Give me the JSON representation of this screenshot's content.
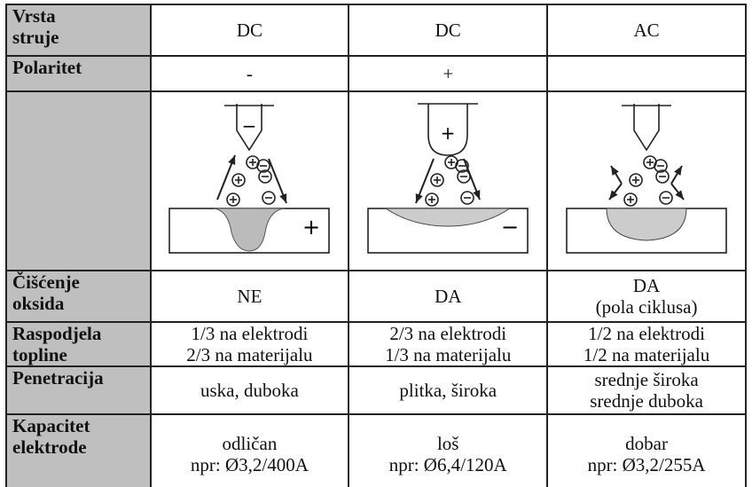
{
  "table": {
    "rows": [
      {
        "label": [
          "Vrsta",
          "struje"
        ],
        "cells": [
          [
            "DC"
          ],
          [
            "DC"
          ],
          [
            "AC"
          ]
        ]
      },
      {
        "label": [
          "Polaritet"
        ],
        "cells": [
          [
            "-"
          ],
          [
            "+"
          ],
          null
        ]
      },
      {
        "diagrams": [
          {
            "electrode_sign": "−",
            "workpiece_sign": "+"
          },
          {
            "electrode_sign": "+",
            "workpiece_sign": "−"
          },
          {}
        ]
      },
      {
        "label": [
          "Čišćenje",
          "oksida"
        ],
        "cells": [
          [
            "NE"
          ],
          [
            "DA"
          ],
          [
            "DA",
            "(pola ciklusa)"
          ]
        ]
      },
      {
        "label": [
          "Raspodjela",
          "topline"
        ],
        "cells": [
          [
            "1/3 na elektrodi",
            "2/3 na materijalu"
          ],
          [
            "2/3 na elektrodi",
            "1/3 na materijalu"
          ],
          [
            "1/2 na elektrodi",
            "1/2 na materijalu"
          ]
        ]
      },
      {
        "label": [
          "Penetracija"
        ],
        "cells": [
          [
            "uska, duboka"
          ],
          [
            "plitka, široka"
          ],
          [
            "srednje široka",
            "srednje duboka"
          ]
        ]
      },
      {
        "label": [
          "Kapacitet",
          "elektrode"
        ],
        "cells": [
          [
            "odličan",
            "npr: Ø3,2/400A"
          ],
          [
            "loš",
            "npr: Ø6,4/120A"
          ],
          [
            "dobar",
            "npr: Ø3,2/255A"
          ]
        ]
      }
    ]
  }
}
